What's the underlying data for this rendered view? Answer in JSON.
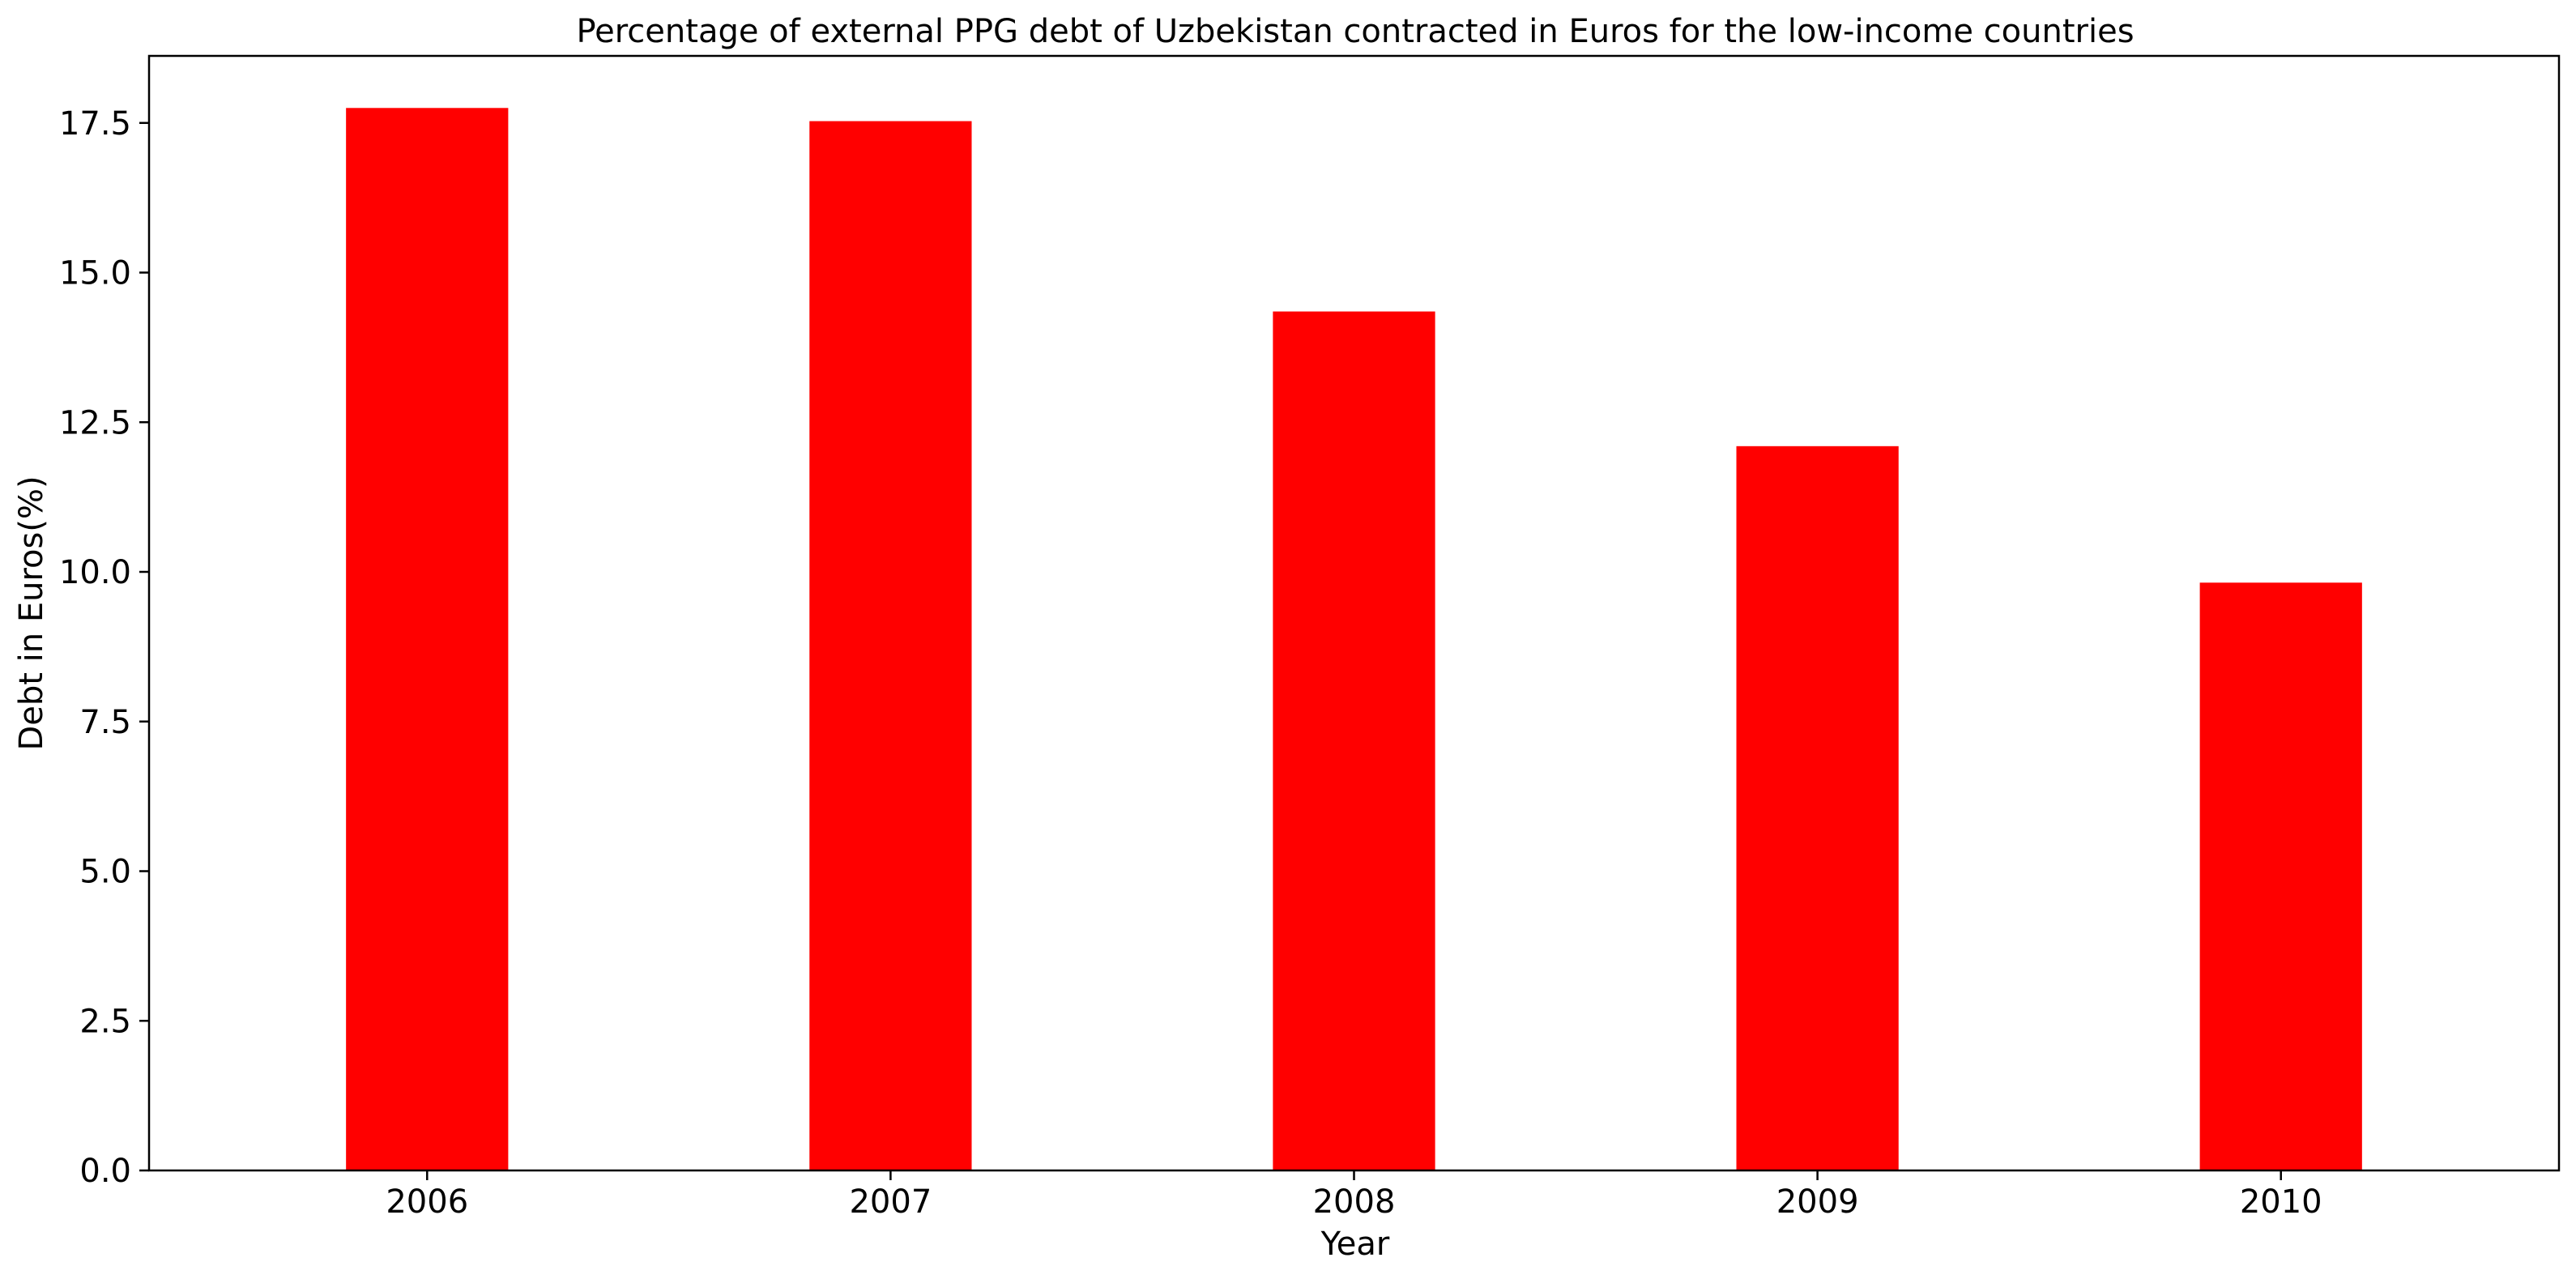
{
  "chart_data": {
    "type": "bar",
    "title": "Percentage of external PPG debt of Uzbekistan contracted in Euros for the low-income countries",
    "xlabel": "Year",
    "ylabel": "Debt in Euros(%)",
    "categories": [
      "2006",
      "2007",
      "2008",
      "2009",
      "2010"
    ],
    "values": [
      17.75,
      17.53,
      14.35,
      12.1,
      9.82
    ],
    "ylim": [
      0,
      18.62
    ],
    "yticks": [
      0.0,
      2.5,
      5.0,
      7.5,
      10.0,
      12.5,
      15.0,
      17.5
    ],
    "ytick_labels": [
      "0.0",
      "2.5",
      "5.0",
      "7.5",
      "10.0",
      "12.5",
      "15.0",
      "17.5"
    ],
    "bar_color": "#ff0000",
    "grid": false,
    "legend": "none"
  }
}
